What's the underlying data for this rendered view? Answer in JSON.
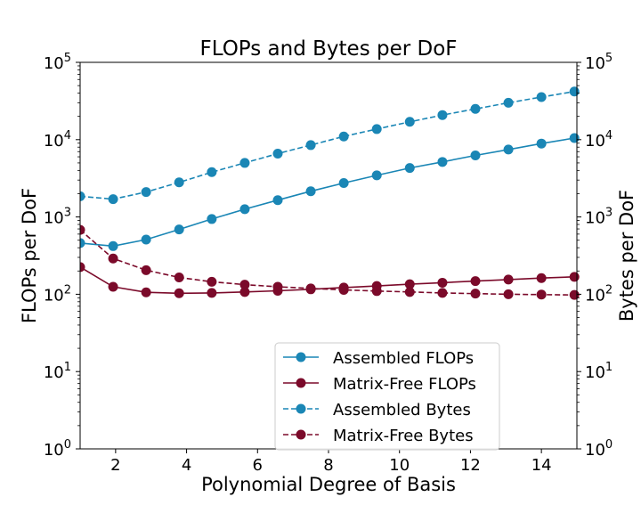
{
  "chart_data": {
    "type": "line",
    "title": "FLOPs and Bytes per DoF",
    "xlabel": "Polynomial Degree of Basis",
    "ylabel_left": "FLOPs per DoF",
    "ylabel_right": "Bytes per DoF",
    "xlim": [
      1,
      15
    ],
    "ylim": [
      1,
      100000
    ],
    "yscale": "log",
    "xticks": [
      "2",
      "4",
      "6",
      "8",
      "10",
      "12",
      "14"
    ],
    "ytick_bases": [
      "10",
      "10",
      "10",
      "10",
      "10",
      "10"
    ],
    "ytick_exps": [
      "0",
      "1",
      "2",
      "3",
      "4",
      "5"
    ],
    "legend_position": "lower center",
    "series": [
      {
        "name": "Assembled FLOPs",
        "color": "#1A86B5",
        "dashed": false,
        "x": [
          1,
          1.93,
          2.86,
          3.79,
          4.71,
          5.64,
          6.57,
          7.5,
          8.43,
          9.36,
          10.29,
          11.21,
          12.14,
          13.07,
          14.0,
          14.93
        ],
        "y": [
          460,
          420,
          510,
          690,
          940,
          1260,
          1650,
          2150,
          2750,
          3450,
          4300,
          5150,
          6250,
          7450,
          8900,
          10500
        ]
      },
      {
        "name": "Matrix-Free FLOPs",
        "color": "#7B0A2A",
        "dashed": false,
        "x": [
          1,
          1.93,
          2.86,
          3.79,
          4.71,
          5.64,
          6.57,
          7.5,
          8.43,
          9.36,
          10.29,
          11.21,
          12.14,
          13.07,
          14.0,
          14.93
        ],
        "y": [
          225,
          125,
          106,
          103,
          104,
          107,
          111,
          116,
          122,
          128,
          135,
          141,
          148,
          155,
          162,
          168
        ]
      },
      {
        "name": "Assembled Bytes",
        "color": "#1A86B5",
        "dashed": true,
        "x": [
          1,
          1.93,
          2.86,
          3.79,
          4.71,
          5.64,
          6.57,
          7.5,
          8.43,
          9.36,
          10.29,
          11.21,
          12.14,
          13.07,
          14.0,
          14.93
        ],
        "y": [
          1850,
          1700,
          2100,
          2800,
          3800,
          5000,
          6600,
          8500,
          11000,
          13700,
          17000,
          20800,
          25000,
          30000,
          35500,
          42000
        ]
      },
      {
        "name": "Matrix-Free Bytes",
        "color": "#7B0A2A",
        "dashed": true,
        "x": [
          1,
          1.93,
          2.86,
          3.79,
          4.71,
          5.64,
          6.57,
          7.5,
          8.43,
          9.36,
          10.29,
          11.21,
          12.14,
          13.07,
          14.0,
          14.93
        ],
        "y": [
          680,
          290,
          205,
          165,
          145,
          133,
          125,
          119,
          114,
          110,
          107,
          104,
          102,
          100,
          99,
          98
        ]
      }
    ]
  }
}
